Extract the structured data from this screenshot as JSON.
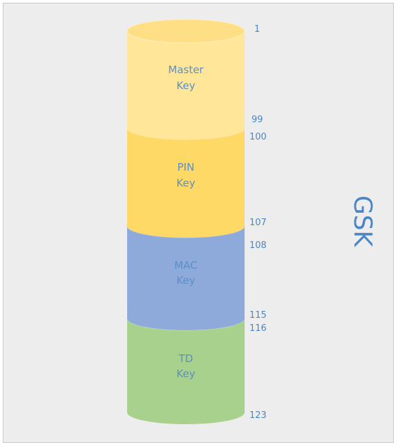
{
  "title": "GSK",
  "segments": [
    {
      "name_line1": "Master",
      "name_line2": "Key",
      "start": "1",
      "end": "99",
      "color": "#ffe699",
      "rim": "#ffdf85"
    },
    {
      "name_line1": "PIN",
      "name_line2": "Key",
      "start": "100",
      "end": "107",
      "color": "#ffd966",
      "rim": "#ffd557"
    },
    {
      "name_line1": "MAC",
      "name_line2": "Key",
      "start": "108",
      "end": "115",
      "color": "#8eaadb",
      "rim": "#9ab2de"
    },
    {
      "name_line1": "TD",
      "name_line2": "Key",
      "start": "116",
      "end": "123",
      "color": "#a9d18e",
      "rim": "#b4d79c"
    }
  ]
}
